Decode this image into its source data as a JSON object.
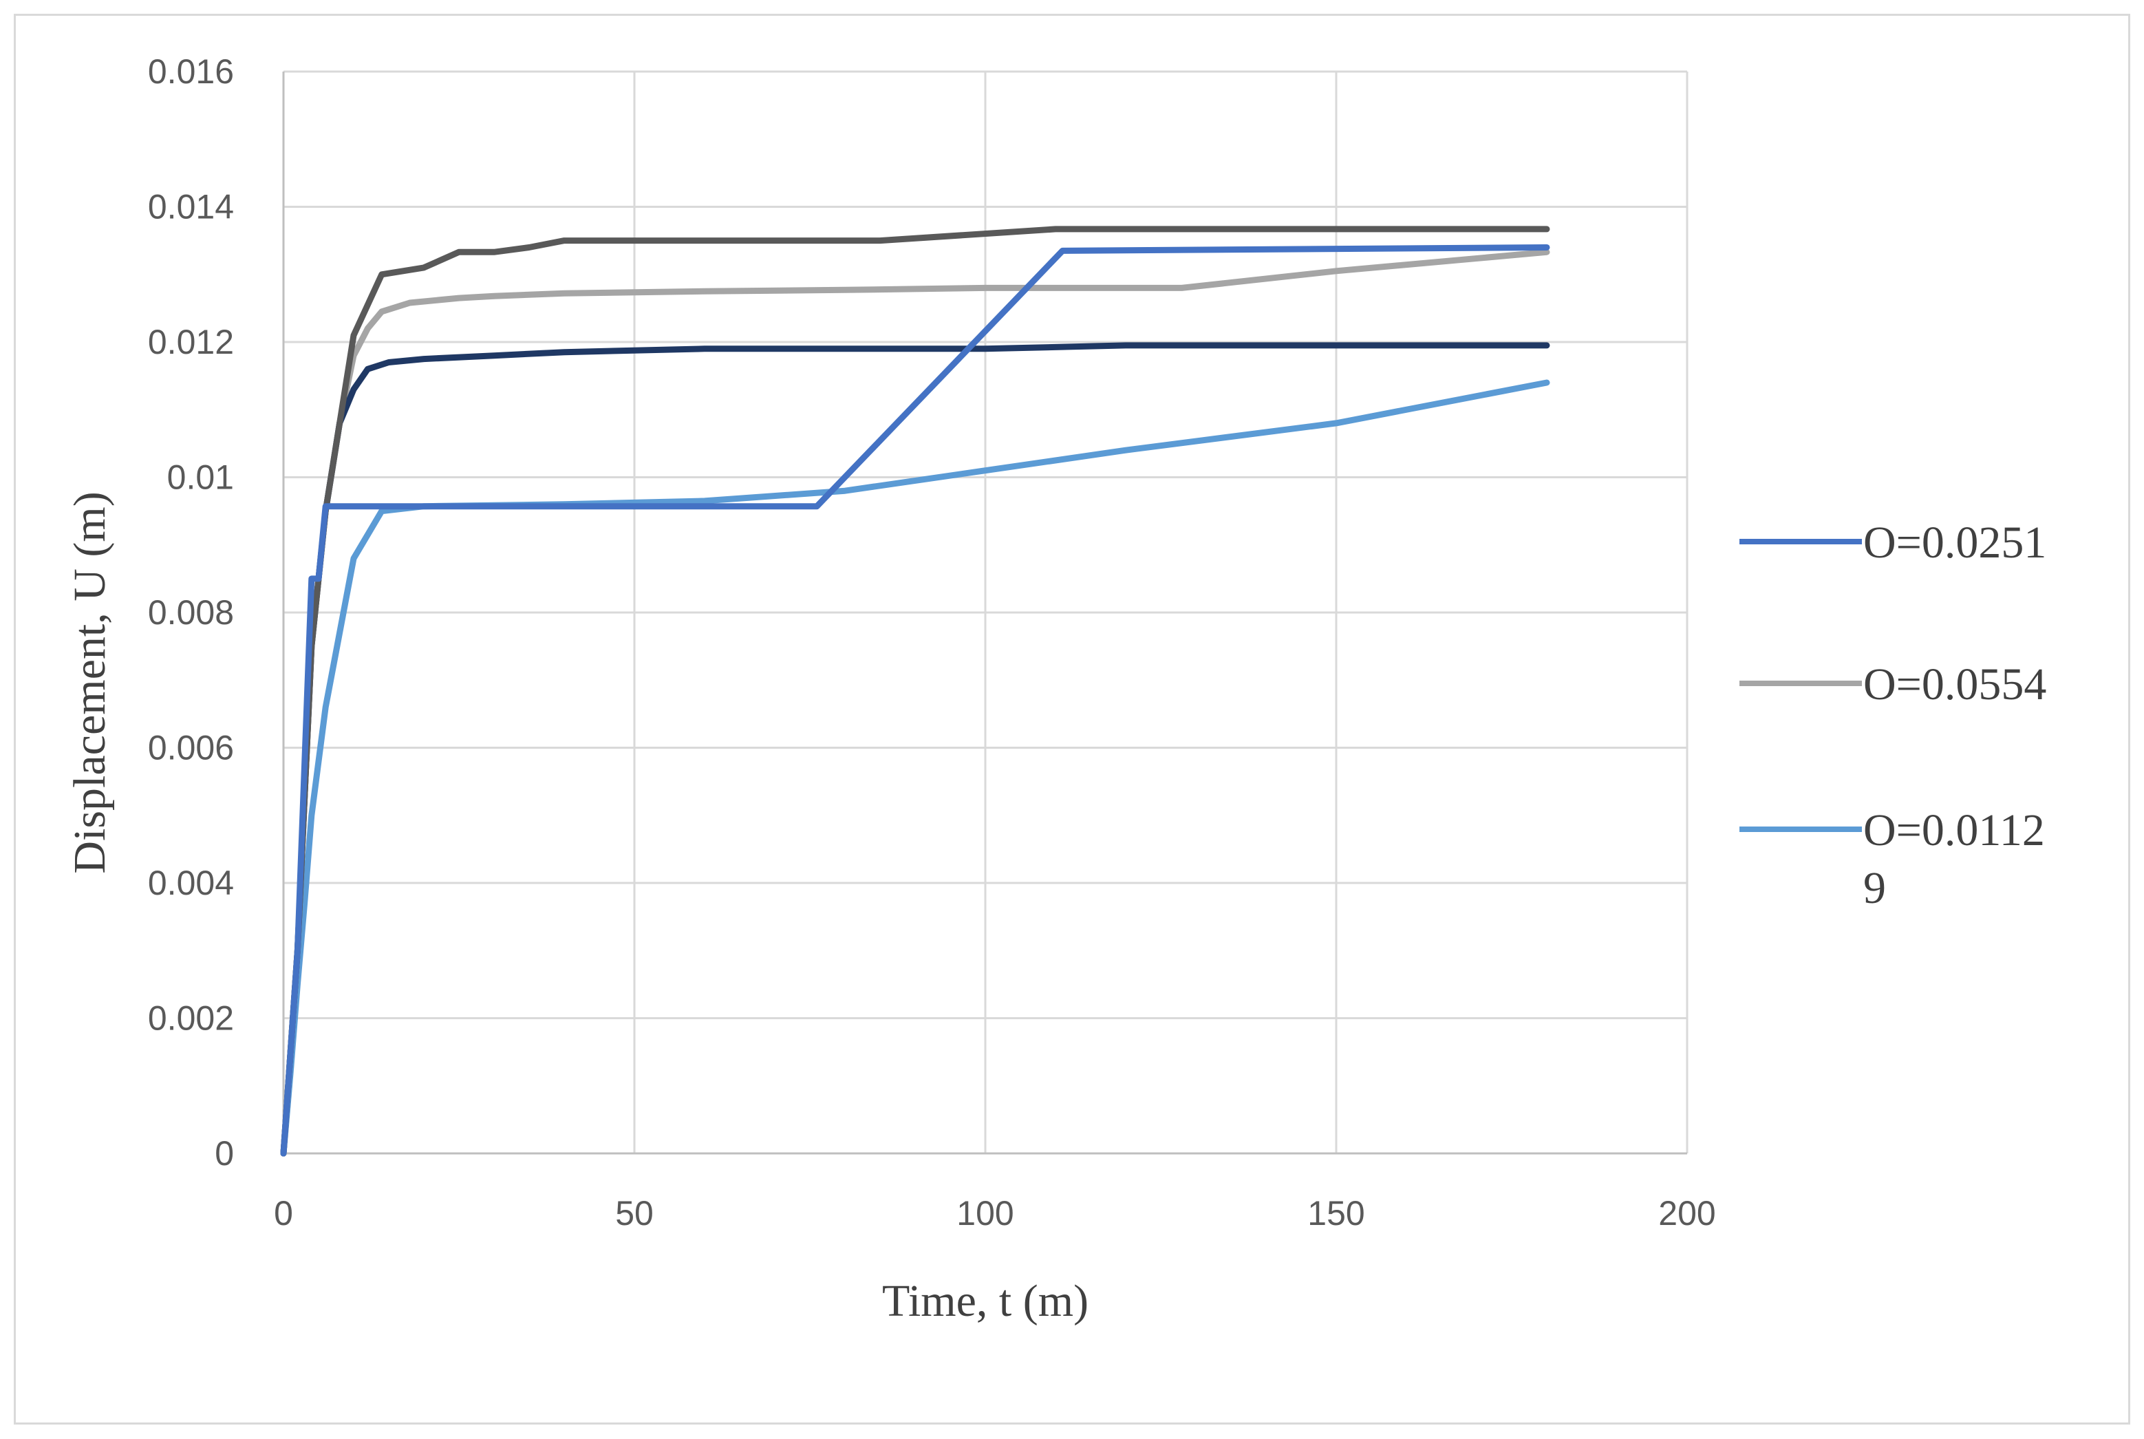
{
  "chart_data": {
    "type": "line",
    "xlabel": "Time, t (m)",
    "ylabel": "Displacement, U (m)",
    "xlim": [
      0,
      200
    ],
    "ylim": [
      0,
      0.016
    ],
    "x_ticks": [
      "0",
      "50",
      "100",
      "150",
      "200"
    ],
    "y_ticks": [
      "0",
      "0.002",
      "0.004",
      "0.006",
      "0.008",
      "0.01",
      "0.012",
      "0.014",
      "0.016"
    ],
    "grid": true,
    "legend_position": "right",
    "series": [
      {
        "color": "#1f3864",
        "x": [
          0,
          2,
          4,
          6,
          8,
          10,
          12,
          15,
          20,
          30,
          40,
          60,
          80,
          100,
          120,
          150,
          180
        ],
        "y": [
          0,
          0.003,
          0.0075,
          0.0095,
          0.0108,
          0.0113,
          0.0116,
          0.0117,
          0.01175,
          0.0118,
          0.01185,
          0.0119,
          0.0119,
          0.0119,
          0.01195,
          0.01195,
          0.01195
        ]
      },
      {
        "color": "#595959",
        "x": [
          0,
          2,
          4,
          6,
          8,
          10,
          14,
          20,
          25,
          30,
          35,
          40,
          60,
          85,
          110,
          150,
          180
        ],
        "y": [
          0,
          0.003,
          0.0075,
          0.0095,
          0.0108,
          0.0121,
          0.013,
          0.0131,
          0.01333,
          0.01333,
          0.0134,
          0.0135,
          0.0135,
          0.0135,
          0.01367,
          0.01367,
          0.01367
        ]
      },
      {
        "name": "O=0.0251",
        "color": "#4472c4",
        "x": [
          0,
          2,
          4,
          5,
          6,
          76,
          111,
          180
        ],
        "y": [
          0,
          0.003,
          0.0085,
          0.0085,
          0.00957,
          0.00957,
          0.01335,
          0.0134
        ]
      },
      {
        "name": "O=0.0554",
        "color": "#a5a5a5",
        "x": [
          0,
          2,
          4,
          6,
          8,
          10,
          12,
          14,
          18,
          25,
          30,
          40,
          60,
          80,
          100,
          128,
          150,
          180
        ],
        "y": [
          0,
          0.003,
          0.0075,
          0.0095,
          0.0108,
          0.0118,
          0.0122,
          0.01245,
          0.01258,
          0.01265,
          0.01268,
          0.01272,
          0.01275,
          0.01277,
          0.0128,
          0.0128,
          0.01305,
          0.01333
        ]
      },
      {
        "name": "O=0.01129",
        "color": "#5b9bd5",
        "x": [
          0,
          1,
          2,
          3,
          4,
          6,
          8,
          10,
          14,
          20,
          40,
          60,
          80,
          100,
          120,
          150,
          180
        ],
        "y": [
          0,
          0.0012,
          0.0025,
          0.0037,
          0.005,
          0.0066,
          0.0077,
          0.0088,
          0.0095,
          0.00957,
          0.0096,
          0.00965,
          0.0098,
          0.0101,
          0.0104,
          0.0108,
          0.0114
        ]
      }
    ]
  }
}
